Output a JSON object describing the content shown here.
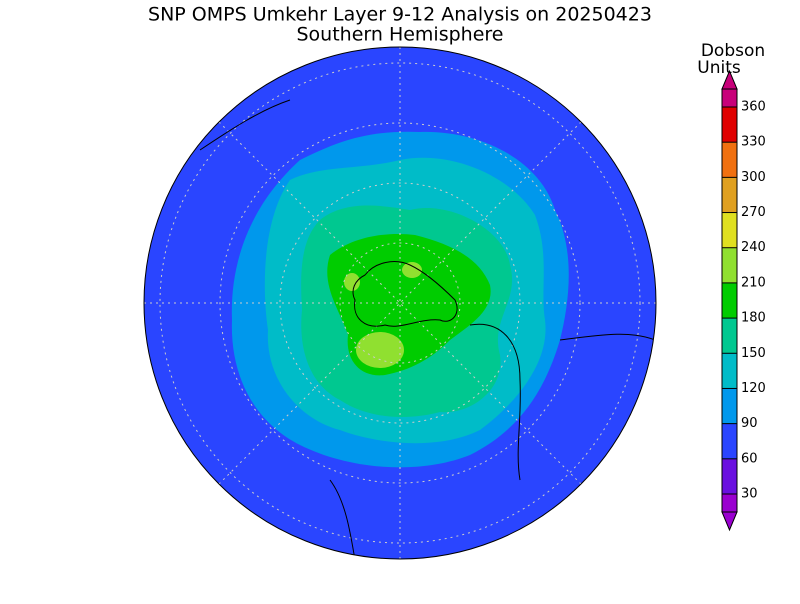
{
  "title": "SNP OMPS Umkehr Layer 9-12 Analysis on 20250423",
  "subtitle": "Southern Hemisphere",
  "colorbar": {
    "label_lines": [
      "Dobson",
      "Units"
    ],
    "ticks": [
      30,
      60,
      90,
      120,
      150,
      180,
      210,
      240,
      270,
      300,
      330,
      360
    ],
    "colors": [
      "#9a00d0",
      "#6a10e0",
      "#2a45ff",
      "#0098ec",
      "#00bcc8",
      "#00c890",
      "#00cc00",
      "#90e030",
      "#e0e020",
      "#e0a020",
      "#f07010",
      "#e00000",
      "#c8007a"
    ]
  }
}
